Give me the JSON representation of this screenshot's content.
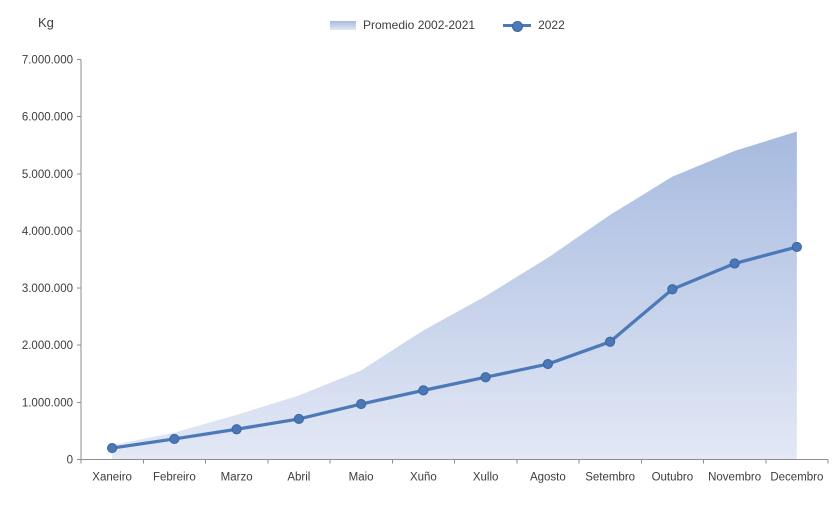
{
  "colors": {
    "series_line": "#4c79b8",
    "marker_fill": "#4a77b6",
    "marker_border": "#3c65a0",
    "area_gradient_top": "#a6badf",
    "area_gradient_bottom": "#e3e8f5",
    "axis_line": "#8e8e8e",
    "label_text": "#3d3d3d"
  },
  "chart_data": {
    "type": "area",
    "title": "",
    "ylabel": "Kg",
    "xlabel": "",
    "categories": [
      "Xaneiro",
      "Febreiro",
      "Marzo",
      "Abril",
      "Maio",
      "Xuño",
      "Xullo",
      "Agosto",
      "Setembro",
      "Outubro",
      "Novembro",
      "Decembro"
    ],
    "series": [
      {
        "name": "Promedio 2002-2021",
        "type": "area",
        "values": [
          250000,
          470000,
          780000,
          1120000,
          1560000,
          2260000,
          2860000,
          3530000,
          4280000,
          4950000,
          5400000,
          5740000
        ]
      },
      {
        "name": "2022",
        "type": "line",
        "values": [
          200000,
          360000,
          530000,
          710000,
          970000,
          1210000,
          1440000,
          1670000,
          2060000,
          2980000,
          3430000,
          3720000
        ]
      }
    ],
    "ylim": [
      0,
      7000000
    ],
    "ytick_step": 1000000,
    "ytick_labels": [
      "0",
      "1.000.000",
      "2.000.000",
      "3.000.000",
      "4.000.000",
      "5.000.000",
      "6.000.000",
      "7.000.000"
    ],
    "grid": false,
    "legend_position": "top-center"
  }
}
